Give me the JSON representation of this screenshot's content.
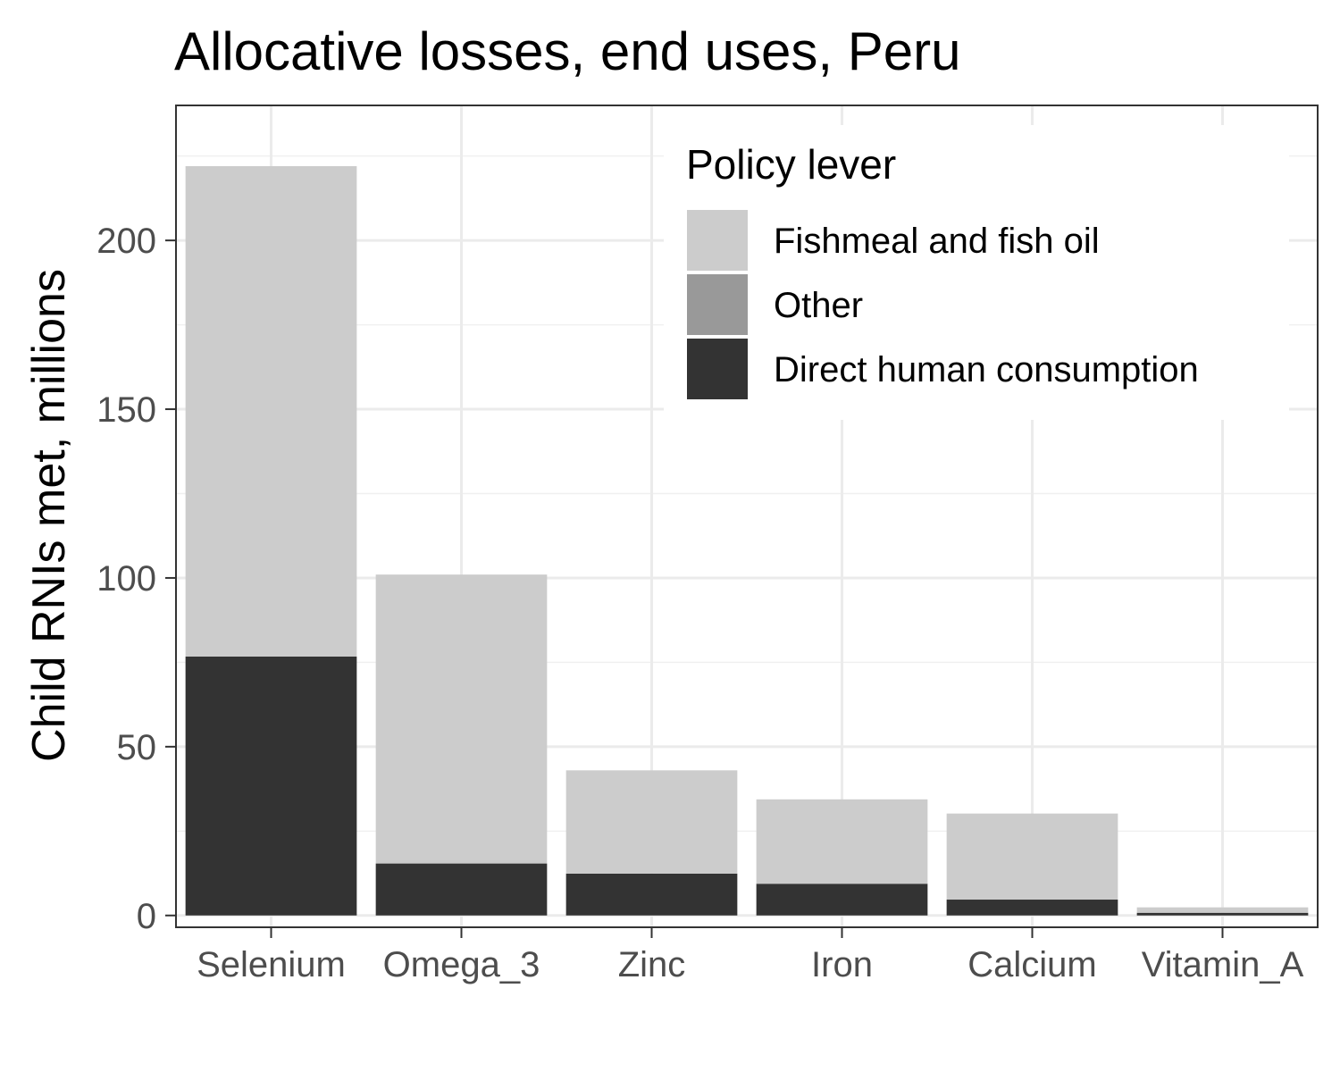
{
  "chart_data": {
    "type": "bar",
    "stacked": true,
    "title": "Allocative losses, end uses, Peru",
    "xlabel": "",
    "ylabel": "Child RNIs met, millions",
    "categories": [
      "Selenium",
      "Omega_3",
      "Zinc",
      "Iron",
      "Calcium",
      "Vitamin_A"
    ],
    "series": [
      {
        "name": "Direct human consumption",
        "color": "#333333",
        "values": [
          76.7,
          15.4,
          12.4,
          9.4,
          4.7,
          0.8
        ]
      },
      {
        "name": "Other",
        "color": "#999999",
        "values": [
          0,
          0,
          0,
          0,
          0,
          0
        ]
      },
      {
        "name": "Fishmeal and fish oil",
        "color": "#cccccc",
        "values": [
          145.3,
          85.6,
          30.6,
          25.0,
          25.5,
          1.6
        ]
      }
    ],
    "ylim": [
      -3.5,
      240
    ],
    "yticks": [
      0,
      50,
      100,
      150,
      200
    ],
    "grid": true,
    "legend": {
      "title": "Policy lever",
      "position": "top-right",
      "entries": [
        {
          "label": "Fishmeal and fish oil",
          "color": "#cccccc"
        },
        {
          "label": "Other",
          "color": "#999999"
        },
        {
          "label": "Direct human consumption",
          "color": "#333333"
        }
      ]
    }
  }
}
